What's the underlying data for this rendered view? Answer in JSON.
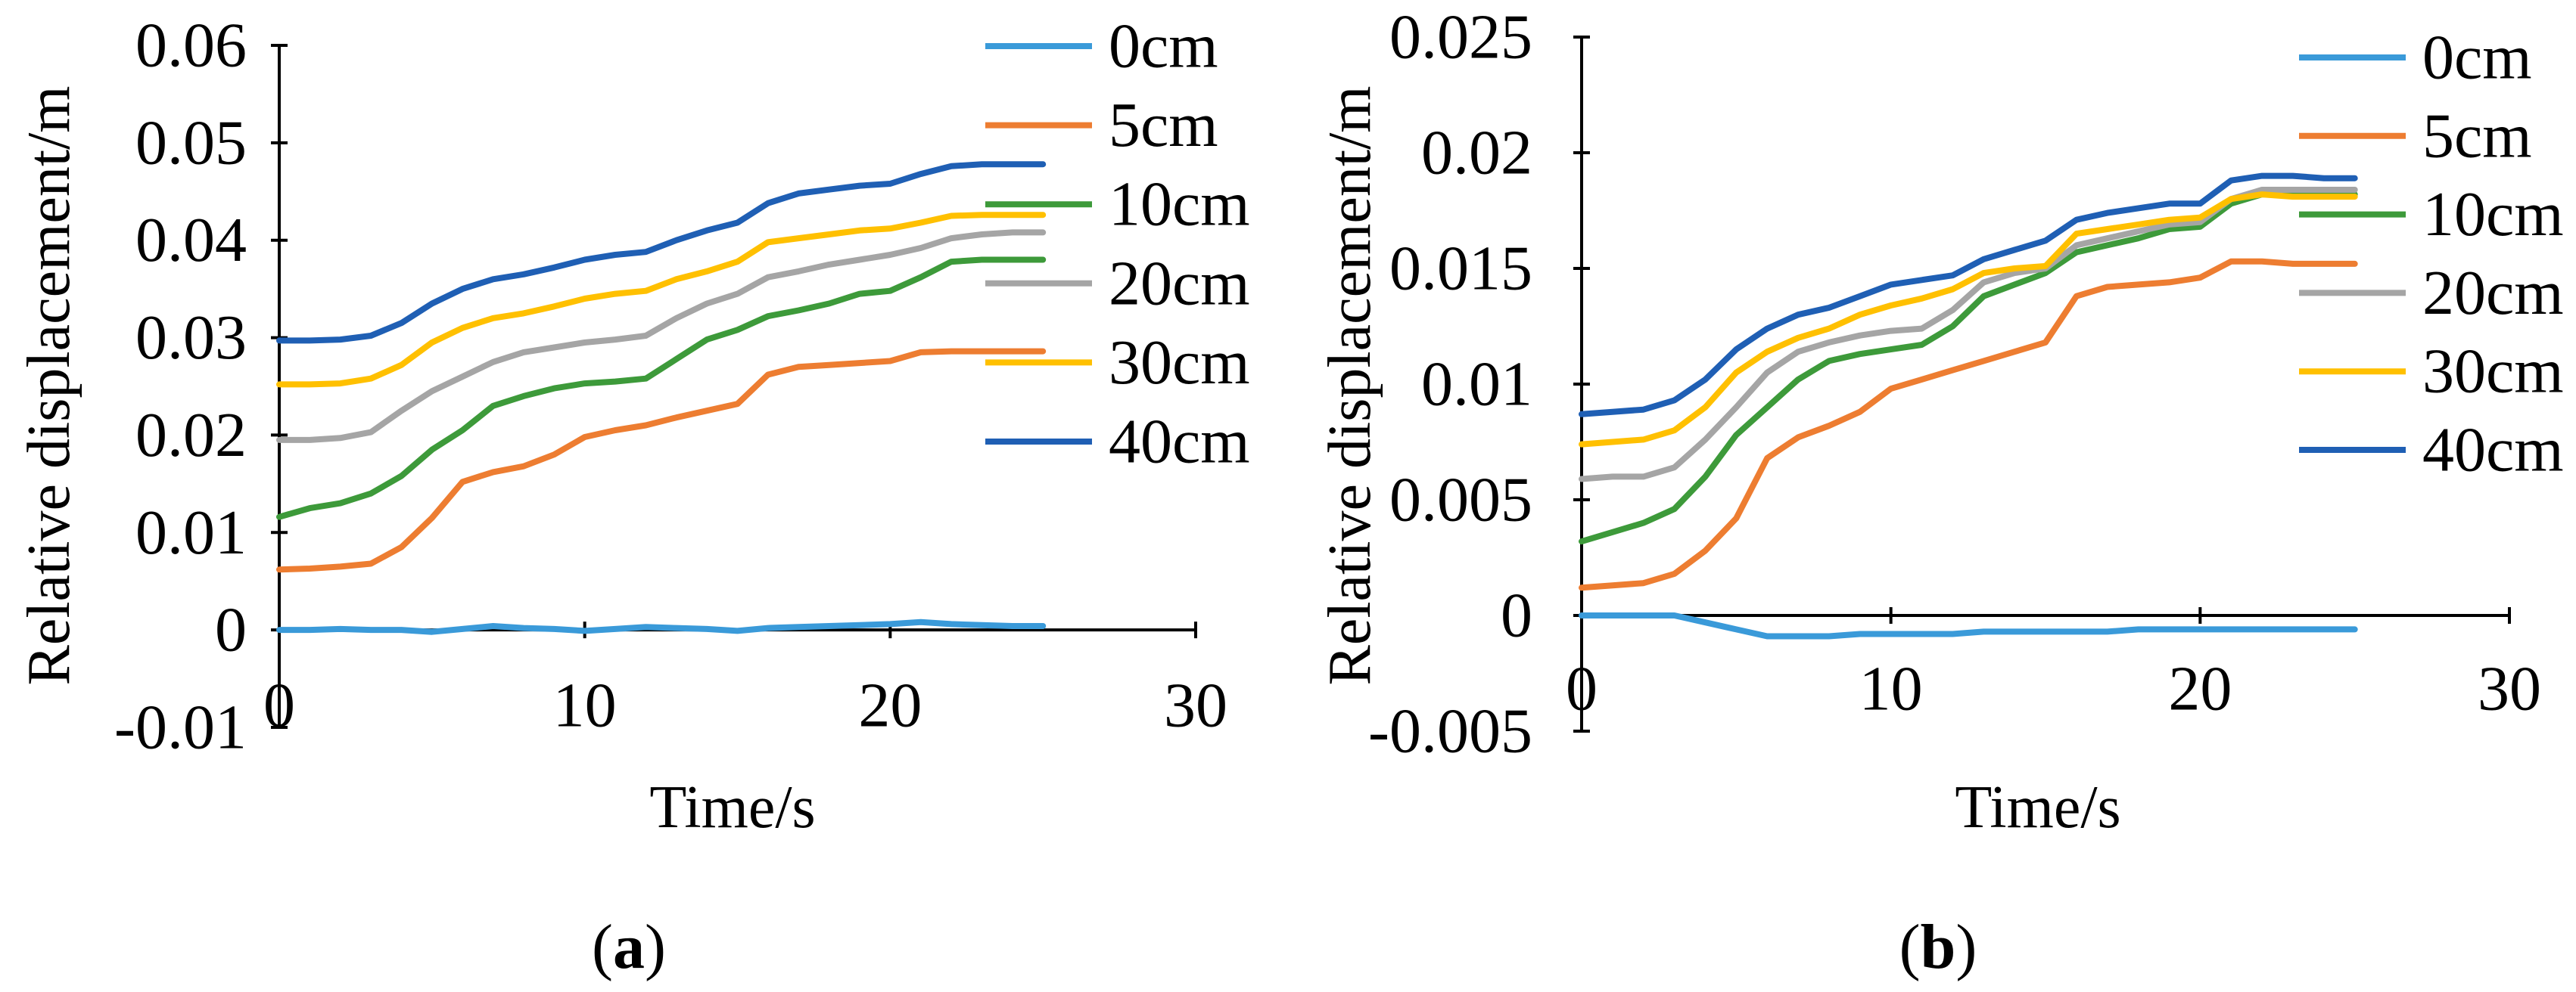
{
  "figure": {
    "background": "#ffffff",
    "text_color": "#000000",
    "axis_color": "#000000"
  },
  "chart_data": [
    {
      "type": "line",
      "caption": {
        "open": "(",
        "label": "a",
        "close": ")"
      },
      "xlabel": "Time/s",
      "ylabel": "Relative displacement/m",
      "xlim": [
        0,
        30
      ],
      "ylim": [
        -0.01,
        0.06
      ],
      "xticks": [
        0,
        10,
        20,
        30
      ],
      "xtick_labels": [
        "0",
        "10",
        "20",
        "30"
      ],
      "yticks": [
        0.06,
        0.05,
        0.04,
        0.03,
        0.02,
        0.01,
        0,
        -0.01
      ],
      "ytick_labels": [
        "0.06",
        "0.05",
        "0.04",
        "0.03",
        "0.02",
        "0.01",
        "0",
        "-0.01"
      ],
      "grid": false,
      "legend_position": "right",
      "x": [
        0,
        1,
        2,
        3,
        4,
        5,
        6,
        7,
        8,
        9,
        10,
        11,
        12,
        13,
        14,
        15,
        16,
        17,
        18,
        19,
        20,
        21,
        22,
        23,
        24,
        25
      ],
      "series": [
        {
          "name": "0cm",
          "color": "#3A9AD9",
          "values": [
            0,
            0,
            0.0001,
            0,
            0,
            -0.0002,
            0.0001,
            0.0004,
            0.0002,
            0.0001,
            -0.0001,
            0.0001,
            0.0003,
            0.0002,
            0.0001,
            -0.0001,
            0.0002,
            0.0003,
            0.0004,
            0.0005,
            0.0006,
            0.0008,
            0.0006,
            0.0005,
            0.0004,
            0.0004
          ]
        },
        {
          "name": "5cm",
          "color": "#ED7D31",
          "values": [
            0.0062,
            0.0063,
            0.0065,
            0.0068,
            0.0085,
            0.0115,
            0.0152,
            0.0162,
            0.0168,
            0.018,
            0.0198,
            0.0205,
            0.021,
            0.0218,
            0.0225,
            0.0232,
            0.0262,
            0.027,
            0.0272,
            0.0274,
            0.0276,
            0.0285,
            0.0286,
            0.0286,
            0.0286,
            0.0286
          ]
        },
        {
          "name": "10cm",
          "color": "#3D9A3A",
          "values": [
            0.0116,
            0.0125,
            0.013,
            0.014,
            0.0158,
            0.0185,
            0.0205,
            0.023,
            0.024,
            0.0248,
            0.0253,
            0.0255,
            0.0258,
            0.0278,
            0.0298,
            0.0308,
            0.0322,
            0.0328,
            0.0335,
            0.0345,
            0.0348,
            0.0362,
            0.0378,
            0.038,
            0.038,
            0.038
          ]
        },
        {
          "name": "20cm",
          "color": "#A5A5A5",
          "values": [
            0.0195,
            0.0195,
            0.0197,
            0.0203,
            0.0225,
            0.0245,
            0.026,
            0.0275,
            0.0285,
            0.029,
            0.0295,
            0.0298,
            0.0302,
            0.032,
            0.0335,
            0.0345,
            0.0362,
            0.0368,
            0.0375,
            0.038,
            0.0385,
            0.0392,
            0.0402,
            0.0406,
            0.0408,
            0.0408
          ]
        },
        {
          "name": "30cm",
          "color": "#FFC000",
          "values": [
            0.0252,
            0.0252,
            0.0253,
            0.0258,
            0.0272,
            0.0295,
            0.031,
            0.032,
            0.0325,
            0.0332,
            0.034,
            0.0345,
            0.0348,
            0.036,
            0.0368,
            0.0378,
            0.0398,
            0.0402,
            0.0406,
            0.041,
            0.0412,
            0.0418,
            0.0425,
            0.0426,
            0.0426,
            0.0426
          ]
        },
        {
          "name": "40cm",
          "color": "#1F5FB4",
          "values": [
            0.0297,
            0.0297,
            0.0298,
            0.0302,
            0.0315,
            0.0335,
            0.035,
            0.036,
            0.0365,
            0.0372,
            0.038,
            0.0385,
            0.0388,
            0.04,
            0.041,
            0.0418,
            0.0438,
            0.0448,
            0.0452,
            0.0456,
            0.0458,
            0.0468,
            0.0476,
            0.0478,
            0.0478,
            0.0478
          ]
        }
      ]
    },
    {
      "type": "line",
      "caption": {
        "open": "(",
        "label": "b",
        "close": ")"
      },
      "xlabel": "Time/s",
      "ylabel": "Relative displacement/m",
      "xlim": [
        0,
        30
      ],
      "ylim": [
        -0.005,
        0.025
      ],
      "xticks": [
        0,
        10,
        20,
        30
      ],
      "xtick_labels": [
        "0",
        "10",
        "20",
        "30"
      ],
      "yticks": [
        0.025,
        0.02,
        0.015,
        0.01,
        0.005,
        0,
        -0.005
      ],
      "ytick_labels": [
        "0.025",
        "0.02",
        "0.015",
        "0.01",
        "0.005",
        "0",
        "-0.005"
      ],
      "grid": false,
      "legend_position": "right",
      "x": [
        0,
        1,
        2,
        3,
        4,
        5,
        6,
        7,
        8,
        9,
        10,
        11,
        12,
        13,
        14,
        15,
        16,
        17,
        18,
        19,
        20,
        21,
        22,
        23,
        24,
        25
      ],
      "series": [
        {
          "name": "0cm",
          "color": "#3A9AD9",
          "values": [
            0,
            0,
            0,
            0,
            -0.0003,
            -0.0006,
            -0.0009,
            -0.0009,
            -0.0009,
            -0.0008,
            -0.0008,
            -0.0008,
            -0.0008,
            -0.0007,
            -0.0007,
            -0.0007,
            -0.0007,
            -0.0007,
            -0.0006,
            -0.0006,
            -0.0006,
            -0.0006,
            -0.0006,
            -0.0006,
            -0.0006,
            -0.0006
          ]
        },
        {
          "name": "5cm",
          "color": "#ED7D31",
          "values": [
            0.0012,
            0.0013,
            0.0014,
            0.0018,
            0.0028,
            0.0042,
            0.0068,
            0.0077,
            0.0082,
            0.0088,
            0.0098,
            0.0102,
            0.0106,
            0.011,
            0.0114,
            0.0118,
            0.0138,
            0.0142,
            0.0143,
            0.0144,
            0.0146,
            0.0153,
            0.0153,
            0.0152,
            0.0152,
            0.0152
          ]
        },
        {
          "name": "10cm",
          "color": "#3D9A3A",
          "values": [
            0.0032,
            0.0036,
            0.004,
            0.0046,
            0.006,
            0.0078,
            0.009,
            0.0102,
            0.011,
            0.0113,
            0.0115,
            0.0117,
            0.0125,
            0.0138,
            0.0143,
            0.0148,
            0.0157,
            0.016,
            0.0163,
            0.0167,
            0.0168,
            0.0178,
            0.0182,
            0.0182,
            0.0182,
            0.0182
          ]
        },
        {
          "name": "20cm",
          "color": "#A5A5A5",
          "values": [
            0.0059,
            0.006,
            0.006,
            0.0064,
            0.0076,
            0.009,
            0.0105,
            0.0114,
            0.0118,
            0.0121,
            0.0123,
            0.0124,
            0.0132,
            0.0144,
            0.0148,
            0.015,
            0.016,
            0.0163,
            0.0166,
            0.0169,
            0.017,
            0.018,
            0.0184,
            0.0184,
            0.0184,
            0.0184
          ]
        },
        {
          "name": "30cm",
          "color": "#FFC000",
          "values": [
            0.0074,
            0.0075,
            0.0076,
            0.008,
            0.009,
            0.0105,
            0.0114,
            0.012,
            0.0124,
            0.013,
            0.0134,
            0.0137,
            0.0141,
            0.0148,
            0.015,
            0.0151,
            0.0165,
            0.0167,
            0.0169,
            0.0171,
            0.0172,
            0.018,
            0.0182,
            0.0181,
            0.0181,
            0.0181
          ]
        },
        {
          "name": "40cm",
          "color": "#1F5FB4",
          "values": [
            0.0087,
            0.0088,
            0.0089,
            0.0093,
            0.0102,
            0.0115,
            0.0124,
            0.013,
            0.0133,
            0.0138,
            0.0143,
            0.0145,
            0.0147,
            0.0154,
            0.0158,
            0.0162,
            0.0171,
            0.0174,
            0.0176,
            0.0178,
            0.0178,
            0.0188,
            0.019,
            0.019,
            0.0189,
            0.0189
          ]
        }
      ]
    }
  ]
}
